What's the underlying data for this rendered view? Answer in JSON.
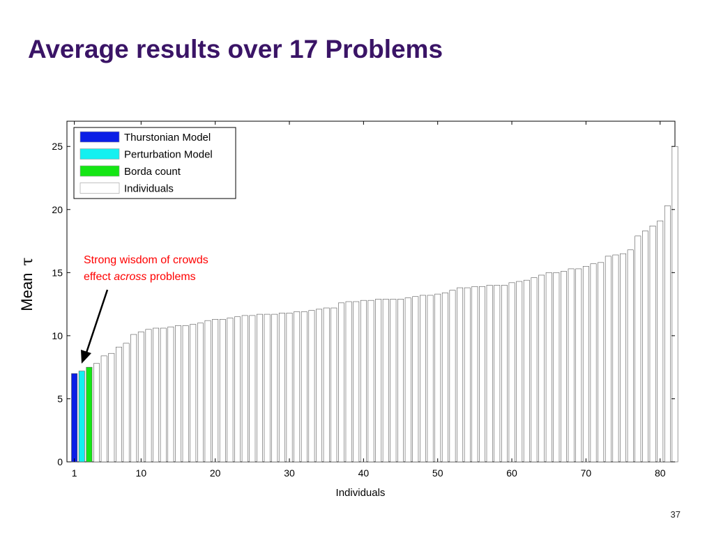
{
  "slide": {
    "title": "Average results over 17 Problems",
    "page_number": "37"
  },
  "chart_data": {
    "type": "bar",
    "xlabel": "Individuals",
    "ylabel": "Mean",
    "ylabel_symbol": "τ",
    "xlim": [
      0,
      82
    ],
    "ylim": [
      0,
      27
    ],
    "xticks": [
      1,
      10,
      20,
      30,
      40,
      50,
      60,
      70,
      80
    ],
    "yticks": [
      0,
      5,
      10,
      15,
      20,
      25
    ],
    "grid": false,
    "legend_position": "top-left",
    "legend": [
      {
        "label": "Thurstonian Model",
        "color": "#0a1ee6"
      },
      {
        "label": "Perturbation Model",
        "color": "#14f0f0"
      },
      {
        "label": "Borda count",
        "color": "#14e614"
      },
      {
        "label": "Individuals",
        "color": "#ffffff"
      }
    ],
    "series": [
      {
        "name": "Thurstonian Model",
        "color": "#0a1ee6",
        "x": [
          1
        ],
        "values": [
          7.0
        ]
      },
      {
        "name": "Perturbation Model",
        "color": "#14f0f0",
        "x": [
          2
        ],
        "values": [
          7.2
        ]
      },
      {
        "name": "Borda count",
        "color": "#14e614",
        "x": [
          3
        ],
        "values": [
          7.5
        ]
      },
      {
        "name": "Individuals",
        "color": "#ffffff",
        "x": [
          4,
          5,
          6,
          7,
          8,
          9,
          10,
          11,
          12,
          13,
          14,
          15,
          16,
          17,
          18,
          19,
          20,
          21,
          22,
          23,
          24,
          25,
          26,
          27,
          28,
          29,
          30,
          31,
          32,
          33,
          34,
          35,
          36,
          37,
          38,
          39,
          40,
          41,
          42,
          43,
          44,
          45,
          46,
          47,
          48,
          49,
          50,
          51,
          52,
          53,
          54,
          55,
          56,
          57,
          58,
          59,
          60,
          61,
          62,
          63,
          64,
          65,
          66,
          67,
          68,
          69,
          70,
          71,
          72,
          73,
          74,
          75,
          76,
          77,
          78,
          79,
          80,
          81,
          82
        ],
        "values": [
          7.8,
          8.4,
          8.6,
          9.1,
          9.4,
          10.1,
          10.3,
          10.5,
          10.6,
          10.6,
          10.7,
          10.8,
          10.8,
          10.9,
          11.0,
          11.2,
          11.3,
          11.3,
          11.4,
          11.5,
          11.6,
          11.6,
          11.7,
          11.7,
          11.7,
          11.8,
          11.8,
          11.9,
          11.9,
          12.0,
          12.1,
          12.2,
          12.2,
          12.6,
          12.7,
          12.7,
          12.8,
          12.8,
          12.9,
          12.9,
          12.9,
          12.9,
          13.0,
          13.1,
          13.2,
          13.2,
          13.3,
          13.4,
          13.6,
          13.8,
          13.8,
          13.9,
          13.9,
          14.0,
          14.0,
          14.0,
          14.2,
          14.3,
          14.4,
          14.6,
          14.8,
          15.0,
          15.0,
          15.1,
          15.3,
          15.3,
          15.5,
          15.7,
          15.8,
          16.3,
          16.4,
          16.5,
          16.8,
          17.9,
          18.3,
          18.7,
          19.1,
          20.3,
          25.0
        ]
      }
    ],
    "annotation": {
      "line1": "Strong wisdom of crowds",
      "line2_pre": "effect ",
      "line2_em": "across",
      "line2_post": " problems",
      "color": "#ff0000"
    }
  }
}
